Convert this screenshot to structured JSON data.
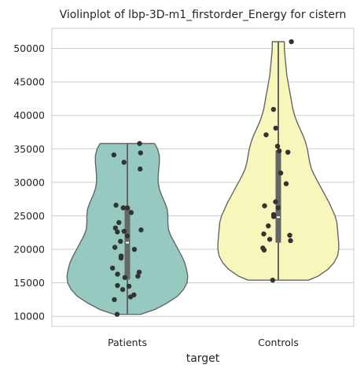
{
  "chart_data": {
    "type": "violin",
    "title": "Violinplot of lbp-3D-m1_firstorder_Energy for cistern",
    "xlabel": "target",
    "ylabel": "",
    "ylim": [
      8500,
      53000
    ],
    "yticks": [
      10000,
      15000,
      20000,
      25000,
      30000,
      35000,
      40000,
      45000,
      50000
    ],
    "grid": "horizontal",
    "categories": [
      "Patients",
      "Controls"
    ],
    "series": [
      {
        "category": "Patients",
        "color": "#96cac1",
        "min": 10300,
        "q1": 15500,
        "median": 21000,
        "q3": 26300,
        "max": 35800,
        "density": [
          [
            10300,
            0.22
          ],
          [
            11000,
            0.45
          ],
          [
            12000,
            0.66
          ],
          [
            13000,
            0.83
          ],
          [
            14000,
            0.93
          ],
          [
            15000,
            0.99
          ],
          [
            16000,
            1.0
          ],
          [
            17000,
            0.98
          ],
          [
            18000,
            0.95
          ],
          [
            19000,
            0.9
          ],
          [
            20000,
            0.84
          ],
          [
            21000,
            0.78
          ],
          [
            22000,
            0.72
          ],
          [
            23000,
            0.68
          ],
          [
            24000,
            0.67
          ],
          [
            25000,
            0.67
          ],
          [
            26000,
            0.66
          ],
          [
            27000,
            0.62
          ],
          [
            28000,
            0.57
          ],
          [
            29000,
            0.53
          ],
          [
            30000,
            0.51
          ],
          [
            31000,
            0.51
          ],
          [
            32000,
            0.52
          ],
          [
            33000,
            0.53
          ],
          [
            34000,
            0.53
          ],
          [
            35000,
            0.5
          ],
          [
            35800,
            0.45
          ]
        ],
        "points": [
          35800,
          34400,
          34100,
          33000,
          32000,
          26600,
          26200,
          26200,
          25500,
          24000,
          23200,
          22900,
          22700,
          22600,
          22000,
          21200,
          20300,
          20000,
          19000,
          18700,
          17200,
          16600,
          16300,
          16000,
          15800,
          14600,
          14500,
          14000,
          13200,
          12900,
          12500,
          10300
        ]
      },
      {
        "category": "Controls",
        "color": "#f8f7bb",
        "min": 15400,
        "q1": 21000,
        "median": 24800,
        "q3": 34800,
        "max": 51000,
        "density": [
          [
            15400,
            0.5
          ],
          [
            16000,
            0.66
          ],
          [
            17000,
            0.82
          ],
          [
            18000,
            0.92
          ],
          [
            19000,
            0.98
          ],
          [
            20000,
            1.0
          ],
          [
            21000,
            1.0
          ],
          [
            22000,
            0.99
          ],
          [
            23000,
            0.98
          ],
          [
            24000,
            0.97
          ],
          [
            25000,
            0.94
          ],
          [
            26000,
            0.89
          ],
          [
            27000,
            0.84
          ],
          [
            28000,
            0.78
          ],
          [
            29000,
            0.72
          ],
          [
            30000,
            0.66
          ],
          [
            31000,
            0.6
          ],
          [
            32000,
            0.55
          ],
          [
            33000,
            0.52
          ],
          [
            34000,
            0.5
          ],
          [
            35000,
            0.48
          ],
          [
            36000,
            0.45
          ],
          [
            37000,
            0.41
          ],
          [
            38000,
            0.36
          ],
          [
            39000,
            0.31
          ],
          [
            40000,
            0.27
          ],
          [
            41000,
            0.24
          ],
          [
            42000,
            0.22
          ],
          [
            43000,
            0.2
          ],
          [
            44000,
            0.18
          ],
          [
            45000,
            0.16
          ],
          [
            46000,
            0.14
          ],
          [
            47000,
            0.13
          ],
          [
            48000,
            0.12
          ],
          [
            49000,
            0.11
          ],
          [
            50000,
            0.1
          ],
          [
            51000,
            0.1
          ]
        ],
        "points": [
          51000,
          40900,
          38100,
          37100,
          35400,
          34700,
          34500,
          31400,
          29800,
          27100,
          26500,
          26200,
          25200,
          24900,
          23500,
          22300,
          22100,
          21500,
          21300,
          20200,
          19900,
          15400
        ]
      }
    ]
  }
}
